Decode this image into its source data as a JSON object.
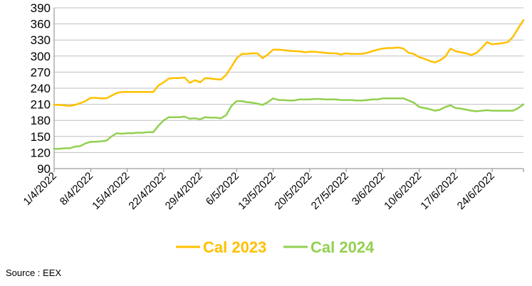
{
  "chart_data": {
    "type": "line",
    "title": "",
    "xlabel": "",
    "ylabel": "",
    "ylim": [
      90,
      390
    ],
    "yticks": [
      90,
      120,
      150,
      180,
      210,
      240,
      270,
      300,
      330,
      360,
      390
    ],
    "xticks": [
      "1/4/2022",
      "8/4/2022",
      "15/4/2022",
      "22/4/2022",
      "29/4/2022",
      "6/5/2022",
      "13/5/2022",
      "20/5/2022",
      "27/5/2022",
      "3/6/2022",
      "10/6/2022",
      "17/6/2022",
      "24/6/2022"
    ],
    "x_start": "1/4/2022",
    "x_end": "30/6/2022",
    "grid": "horizontal",
    "legend_position": "bottom",
    "series": [
      {
        "name": "Cal 2023",
        "color": "#FFC000",
        "points": [
          [
            "1/4/2022",
            209
          ],
          [
            "2/4/2022",
            209
          ],
          [
            "3/4/2022",
            208
          ],
          [
            "4/4/2022",
            207
          ],
          [
            "5/4/2022",
            209
          ],
          [
            "6/4/2022",
            212
          ],
          [
            "7/4/2022",
            216
          ],
          [
            "8/4/2022",
            222
          ],
          [
            "9/4/2022",
            222
          ],
          [
            "10/4/2022",
            221
          ],
          [
            "11/4/2022",
            221
          ],
          [
            "12/4/2022",
            226
          ],
          [
            "13/4/2022",
            231
          ],
          [
            "14/4/2022",
            233
          ],
          [
            "15/4/2022",
            233
          ],
          [
            "16/4/2022",
            233
          ],
          [
            "17/4/2022",
            233
          ],
          [
            "18/4/2022",
            233
          ],
          [
            "19/4/2022",
            233
          ],
          [
            "20/4/2022",
            233
          ],
          [
            "21/4/2022",
            245
          ],
          [
            "22/4/2022",
            251
          ],
          [
            "23/4/2022",
            258
          ],
          [
            "24/4/2022",
            259
          ],
          [
            "25/4/2022",
            259
          ],
          [
            "26/4/2022",
            260
          ],
          [
            "27/4/2022",
            250
          ],
          [
            "28/4/2022",
            255
          ],
          [
            "29/4/2022",
            251
          ],
          [
            "30/4/2022",
            259
          ],
          [
            "1/5/2022",
            258
          ],
          [
            "2/5/2022",
            257
          ],
          [
            "3/5/2022",
            256
          ],
          [
            "4/5/2022",
            265
          ],
          [
            "5/5/2022",
            280
          ],
          [
            "6/5/2022",
            296
          ],
          [
            "7/5/2022",
            304
          ],
          [
            "8/5/2022",
            304
          ],
          [
            "9/5/2022",
            305
          ],
          [
            "10/5/2022",
            305
          ],
          [
            "11/5/2022",
            296
          ],
          [
            "12/5/2022",
            303
          ],
          [
            "13/5/2022",
            312
          ],
          [
            "14/5/2022",
            312
          ],
          [
            "15/5/2022",
            311
          ],
          [
            "16/5/2022",
            310
          ],
          [
            "17/5/2022",
            309
          ],
          [
            "18/5/2022",
            309
          ],
          [
            "19/5/2022",
            307
          ],
          [
            "20/5/2022",
            308
          ],
          [
            "21/5/2022",
            308
          ],
          [
            "22/5/2022",
            307
          ],
          [
            "23/5/2022",
            306
          ],
          [
            "24/5/2022",
            305
          ],
          [
            "25/5/2022",
            305
          ],
          [
            "26/5/2022",
            303
          ],
          [
            "27/5/2022",
            305
          ],
          [
            "28/5/2022",
            304
          ],
          [
            "29/5/2022",
            304
          ],
          [
            "30/5/2022",
            304
          ],
          [
            "31/5/2022",
            306
          ],
          [
            "1/6/2022",
            309
          ],
          [
            "2/6/2022",
            312
          ],
          [
            "3/6/2022",
            314
          ],
          [
            "4/6/2022",
            315
          ],
          [
            "5/6/2022",
            315
          ],
          [
            "6/6/2022",
            316
          ],
          [
            "7/6/2022",
            314
          ],
          [
            "8/6/2022",
            306
          ],
          [
            "9/6/2022",
            304
          ],
          [
            "10/6/2022",
            298
          ],
          [
            "11/6/2022",
            295
          ],
          [
            "12/6/2022",
            291
          ],
          [
            "13/6/2022",
            288
          ],
          [
            "14/6/2022",
            292
          ],
          [
            "15/6/2022",
            299
          ],
          [
            "16/6/2022",
            314
          ],
          [
            "17/6/2022",
            309
          ],
          [
            "18/6/2022",
            307
          ],
          [
            "19/6/2022",
            305
          ],
          [
            "20/6/2022",
            302
          ],
          [
            "21/6/2022",
            306
          ],
          [
            "22/6/2022",
            315
          ],
          [
            "23/6/2022",
            326
          ],
          [
            "24/6/2022",
            322
          ],
          [
            "25/6/2022",
            323
          ],
          [
            "26/6/2022",
            324
          ],
          [
            "27/6/2022",
            326
          ],
          [
            "28/6/2022",
            336
          ],
          [
            "29/6/2022",
            352
          ],
          [
            "30/6/2022",
            367
          ]
        ]
      },
      {
        "name": "Cal 2024",
        "color": "#92D050",
        "points": [
          [
            "1/4/2022",
            127
          ],
          [
            "2/4/2022",
            127
          ],
          [
            "3/4/2022",
            128
          ],
          [
            "4/4/2022",
            128
          ],
          [
            "5/4/2022",
            131
          ],
          [
            "6/4/2022",
            132
          ],
          [
            "7/4/2022",
            137
          ],
          [
            "8/4/2022",
            140
          ],
          [
            "9/4/2022",
            140
          ],
          [
            "10/4/2022",
            141
          ],
          [
            "11/4/2022",
            142
          ],
          [
            "12/4/2022",
            150
          ],
          [
            "13/4/2022",
            156
          ],
          [
            "14/4/2022",
            155
          ],
          [
            "15/4/2022",
            156
          ],
          [
            "16/4/2022",
            156
          ],
          [
            "17/4/2022",
            157
          ],
          [
            "18/4/2022",
            157
          ],
          [
            "19/4/2022",
            158
          ],
          [
            "20/4/2022",
            158
          ],
          [
            "21/4/2022",
            170
          ],
          [
            "22/4/2022",
            180
          ],
          [
            "23/4/2022",
            186
          ],
          [
            "24/4/2022",
            186
          ],
          [
            "25/4/2022",
            186
          ],
          [
            "26/4/2022",
            187
          ],
          [
            "27/4/2022",
            183
          ],
          [
            "28/4/2022",
            184
          ],
          [
            "29/4/2022",
            182
          ],
          [
            "30/4/2022",
            186
          ],
          [
            "1/5/2022",
            185
          ],
          [
            "2/5/2022",
            185
          ],
          [
            "3/5/2022",
            184
          ],
          [
            "4/5/2022",
            190
          ],
          [
            "5/5/2022",
            207
          ],
          [
            "6/5/2022",
            216
          ],
          [
            "7/5/2022",
            216
          ],
          [
            "8/5/2022",
            214
          ],
          [
            "9/5/2022",
            213
          ],
          [
            "10/5/2022",
            211
          ],
          [
            "11/5/2022",
            209
          ],
          [
            "12/5/2022",
            214
          ],
          [
            "13/5/2022",
            221
          ],
          [
            "14/5/2022",
            218
          ],
          [
            "15/5/2022",
            218
          ],
          [
            "16/5/2022",
            217
          ],
          [
            "17/5/2022",
            217
          ],
          [
            "18/5/2022",
            219
          ],
          [
            "19/5/2022",
            219
          ],
          [
            "20/5/2022",
            219
          ],
          [
            "21/5/2022",
            220
          ],
          [
            "22/5/2022",
            220
          ],
          [
            "23/5/2022",
            219
          ],
          [
            "24/5/2022",
            219
          ],
          [
            "25/5/2022",
            219
          ],
          [
            "26/5/2022",
            218
          ],
          [
            "27/5/2022",
            218
          ],
          [
            "28/5/2022",
            218
          ],
          [
            "29/5/2022",
            217
          ],
          [
            "30/5/2022",
            217
          ],
          [
            "31/5/2022",
            218
          ],
          [
            "1/6/2022",
            219
          ],
          [
            "2/6/2022",
            219
          ],
          [
            "3/6/2022",
            221
          ],
          [
            "4/6/2022",
            221
          ],
          [
            "5/6/2022",
            221
          ],
          [
            "6/6/2022",
            221
          ],
          [
            "7/6/2022",
            221
          ],
          [
            "8/6/2022",
            217
          ],
          [
            "9/6/2022",
            213
          ],
          [
            "10/6/2022",
            205
          ],
          [
            "11/6/2022",
            203
          ],
          [
            "12/6/2022",
            201
          ],
          [
            "13/6/2022",
            198
          ],
          [
            "14/6/2022",
            200
          ],
          [
            "15/6/2022",
            205
          ],
          [
            "16/6/2022",
            208
          ],
          [
            "17/6/2022",
            203
          ],
          [
            "18/6/2022",
            202
          ],
          [
            "19/6/2022",
            200
          ],
          [
            "20/6/2022",
            198
          ],
          [
            "21/6/2022",
            197
          ],
          [
            "22/6/2022",
            198
          ],
          [
            "23/6/2022",
            199
          ],
          [
            "24/6/2022",
            198
          ],
          [
            "25/6/2022",
            198
          ],
          [
            "26/6/2022",
            198
          ],
          [
            "27/6/2022",
            198
          ],
          [
            "28/6/2022",
            198
          ],
          [
            "29/6/2022",
            203
          ],
          [
            "30/6/2022",
            210
          ]
        ]
      }
    ]
  },
  "source_text": "Source : EEX"
}
